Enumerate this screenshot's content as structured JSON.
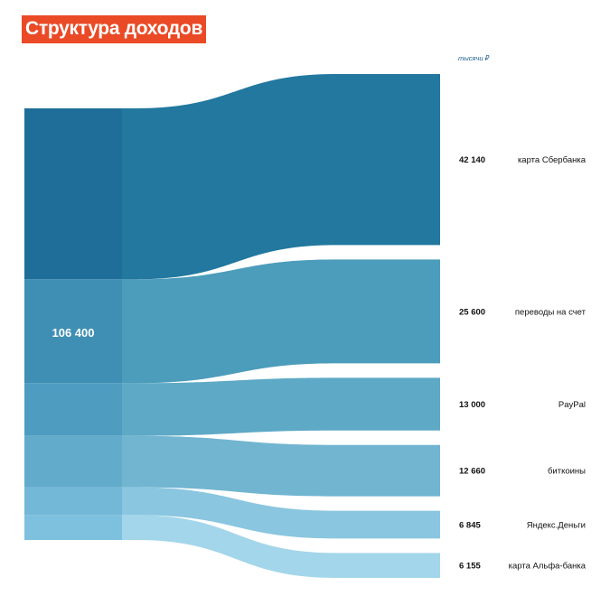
{
  "title": "Структура доходов",
  "colors": {
    "title_bg": "#ea4a26",
    "series": [
      "#22789f",
      "#4c9cbb",
      "#5ea9c6",
      "#71b5d1",
      "#8ac6df",
      "#a3d6ea"
    ],
    "source": [
      "#1f6e99",
      "#3f8fb4",
      "#4e9cc0",
      "#63abcb",
      "#73b8d6",
      "#7ec1de"
    ]
  },
  "chart_data": {
    "type": "sankey",
    "unit_label": "тысячи ₽",
    "total": {
      "value": 106400,
      "label": "106 400"
    },
    "flows": [
      {
        "name": "карта Сбербанка",
        "value": 42140,
        "value_label": "42 140"
      },
      {
        "name": "переводы на счет",
        "value": 25600,
        "value_label": "25 600"
      },
      {
        "name": "PayPal",
        "value": 13000,
        "value_label": "13 000"
      },
      {
        "name": "биткоины",
        "value": 12660,
        "value_label": "12 660"
      },
      {
        "name": "Яндекс.Деньги",
        "value": 6845,
        "value_label": "6 845"
      },
      {
        "name": "карта Альфа-банка",
        "value": 6155,
        "value_label": "6 155"
      }
    ]
  }
}
